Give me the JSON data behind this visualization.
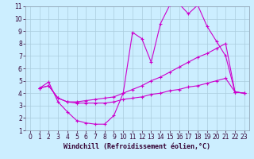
{
  "xlabel": "Windchill (Refroidissement éolien,°C)",
  "bg_color": "#cceeff",
  "grid_color": "#aaccdd",
  "line_color": "#cc00cc",
  "xlim": [
    -0.5,
    23.5
  ],
  "ylim": [
    1,
    11
  ],
  "xticks": [
    0,
    1,
    2,
    3,
    4,
    5,
    6,
    7,
    8,
    9,
    10,
    11,
    12,
    13,
    14,
    15,
    16,
    17,
    18,
    19,
    20,
    21,
    22,
    23
  ],
  "yticks": [
    1,
    2,
    3,
    4,
    5,
    6,
    7,
    8,
    9,
    10,
    11
  ],
  "curve1_x": [
    1,
    2,
    3,
    4,
    5,
    6,
    7,
    8,
    9,
    10,
    11,
    12,
    13,
    14,
    15,
    16,
    17,
    18,
    19,
    20,
    21,
    22,
    23
  ],
  "curve1_y": [
    4.4,
    4.9,
    3.3,
    2.5,
    1.8,
    1.6,
    1.5,
    1.5,
    2.2,
    4.0,
    8.9,
    8.4,
    6.5,
    9.6,
    11.1,
    11.2,
    10.4,
    11.1,
    9.4,
    8.2,
    7.0,
    4.1,
    4.0
  ],
  "curve2_x": [
    1,
    2,
    3,
    4,
    5,
    6,
    7,
    8,
    9,
    10,
    11,
    12,
    13,
    14,
    15,
    16,
    17,
    18,
    19,
    20,
    21,
    22,
    23
  ],
  "curve2_y": [
    4.4,
    4.6,
    3.6,
    3.3,
    3.3,
    3.4,
    3.5,
    3.6,
    3.7,
    4.0,
    4.3,
    4.6,
    5.0,
    5.3,
    5.7,
    6.1,
    6.5,
    6.9,
    7.2,
    7.6,
    8.0,
    4.1,
    4.0
  ],
  "curve3_x": [
    1,
    2,
    3,
    4,
    5,
    6,
    7,
    8,
    9,
    10,
    11,
    12,
    13,
    14,
    15,
    16,
    17,
    18,
    19,
    20,
    21,
    22,
    23
  ],
  "curve3_y": [
    4.4,
    4.6,
    3.6,
    3.3,
    3.2,
    3.2,
    3.2,
    3.2,
    3.3,
    3.5,
    3.6,
    3.7,
    3.9,
    4.0,
    4.2,
    4.3,
    4.5,
    4.6,
    4.8,
    5.0,
    5.2,
    4.1,
    4.0
  ],
  "tick_fontsize": 5.5,
  "xlabel_fontsize": 6.0
}
